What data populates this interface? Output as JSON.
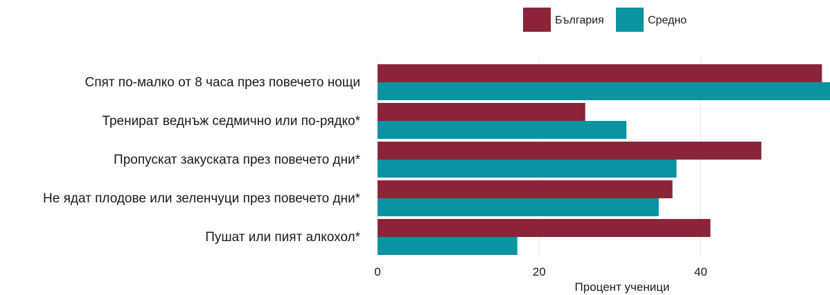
{
  "chart_data": {
    "type": "bar",
    "orientation": "horizontal",
    "categories": [
      "Спят по-малко от 8 часа през повечето нощи",
      "Тренират веднъж седмично или по-рядко*",
      "Пропускат закуската през повечето дни*",
      "Не ядат плодове или зеленчуци през повечето дни*",
      "Пушат или пият алкохол*"
    ],
    "series": [
      {
        "name": "България",
        "color": "#8b2439",
        "values": [
          55,
          25.7,
          47.5,
          36.5,
          41.2
        ]
      },
      {
        "name": "Средно",
        "color": "#0a93a1",
        "values": [
          56,
          30.8,
          37,
          34.8,
          17.3
        ]
      }
    ],
    "xlabel": "Процент ученици",
    "xticks": [
      "0",
      "20",
      "40"
    ],
    "xlim": [
      0,
      56
    ],
    "grid": true,
    "legend_position": "top-right"
  }
}
